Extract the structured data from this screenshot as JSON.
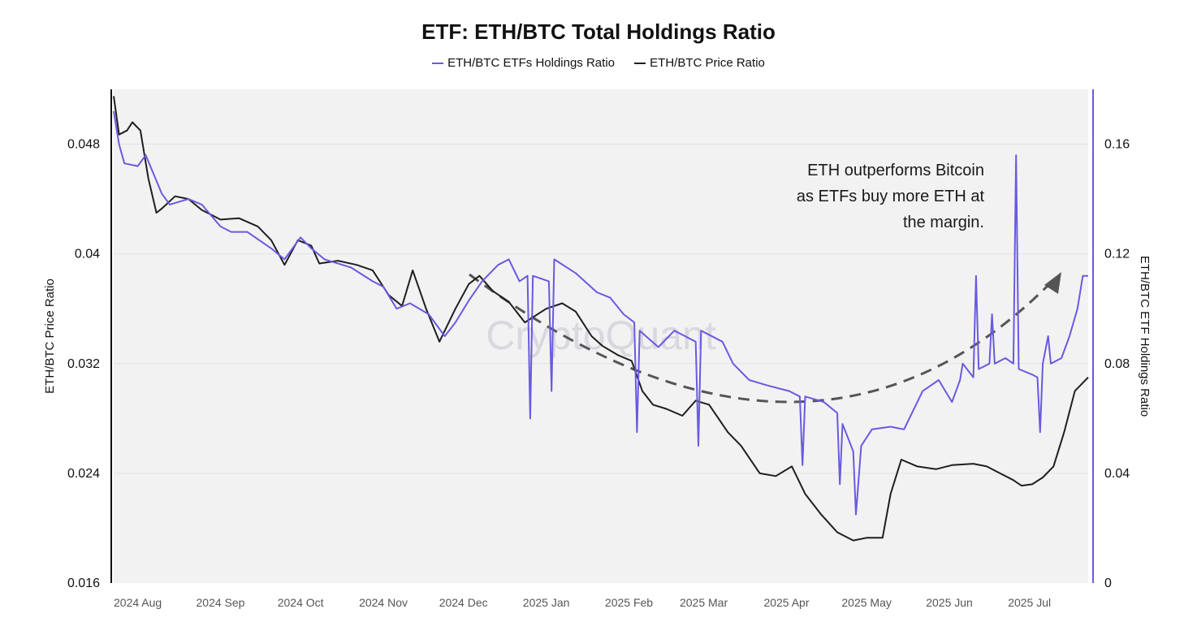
{
  "chart_data": {
    "type": "line",
    "title": "ETF: ETH/BTC Total Holdings Ratio",
    "watermark": "CryptoQuant",
    "annotation": [
      "ETH outperforms Bitcoin",
      "as ETFs buy more ETH at",
      "the margin."
    ],
    "x_tick_labels": [
      "2024 Aug",
      "2024 Sep",
      "2024 Oct",
      "2024 Nov",
      "2024 Dec",
      "2025 Jan",
      "2025 Feb",
      "2025 Mar",
      "2025 Apr",
      "2025 May",
      "2025 Jun",
      "2025 Jul"
    ],
    "x_range": [
      "2024-07-23",
      "2025-07-23"
    ],
    "left_axis": {
      "label": "ETH/BTC Price Ratio",
      "ticks": [
        "0.016",
        "0.024",
        "0.032",
        "0.04",
        "0.048"
      ],
      "range": [
        0.016,
        0.052
      ]
    },
    "right_axis": {
      "label": "ETH/BTC ETF Holdings Ratio",
      "ticks": [
        "0",
        "0.04",
        "0.08",
        "0.12",
        "0.16"
      ],
      "range": [
        0,
        0.18
      ]
    },
    "grid": "horizontal",
    "legend_position": "top-center",
    "series": [
      {
        "name": "ETH/BTC ETFs Holdings Ratio",
        "axis": "right",
        "color": "#6a5ae0",
        "points": [
          [
            "2024-07-23",
            0.172
          ],
          [
            "2024-07-25",
            0.16
          ],
          [
            "2024-07-27",
            0.153
          ],
          [
            "2024-08-01",
            0.152
          ],
          [
            "2024-08-04",
            0.156
          ],
          [
            "2024-08-10",
            0.142
          ],
          [
            "2024-08-13",
            0.138
          ],
          [
            "2024-08-20",
            0.14
          ],
          [
            "2024-08-25",
            0.138
          ],
          [
            "2024-09-01",
            0.13
          ],
          [
            "2024-09-05",
            0.128
          ],
          [
            "2024-09-11",
            0.128
          ],
          [
            "2024-09-20",
            0.122
          ],
          [
            "2024-09-25",
            0.118
          ],
          [
            "2024-10-01",
            0.126
          ],
          [
            "2024-10-05",
            0.122
          ],
          [
            "2024-10-10",
            0.118
          ],
          [
            "2024-10-20",
            0.115
          ],
          [
            "2024-10-28",
            0.11
          ],
          [
            "2024-11-01",
            0.108
          ],
          [
            "2024-11-06",
            0.1
          ],
          [
            "2024-11-11",
            0.102
          ],
          [
            "2024-11-18",
            0.098
          ],
          [
            "2024-11-24",
            0.09
          ],
          [
            "2024-11-28",
            0.095
          ],
          [
            "2024-12-03",
            0.103
          ],
          [
            "2024-12-08",
            0.11
          ],
          [
            "2024-12-14",
            0.116
          ],
          [
            "2024-12-18",
            0.118
          ],
          [
            "2024-12-22",
            0.11
          ],
          [
            "2024-12-25",
            0.112
          ],
          [
            "2024-12-26",
            0.06
          ],
          [
            "2024-12-27",
            0.112
          ],
          [
            "2025-01-02",
            0.11
          ],
          [
            "2025-01-03",
            0.07
          ],
          [
            "2025-01-04",
            0.118
          ],
          [
            "2025-01-12",
            0.113
          ],
          [
            "2025-01-20",
            0.106
          ],
          [
            "2025-01-25",
            0.104
          ],
          [
            "2025-01-30",
            0.098
          ],
          [
            "2025-02-03",
            0.095
          ],
          [
            "2025-02-04",
            0.055
          ],
          [
            "2025-02-05",
            0.092
          ],
          [
            "2025-02-12",
            0.086
          ],
          [
            "2025-02-18",
            0.092
          ],
          [
            "2025-02-22",
            0.09
          ],
          [
            "2025-02-26",
            0.088
          ],
          [
            "2025-02-27",
            0.05
          ],
          [
            "2025-02-28",
            0.092
          ],
          [
            "2025-03-08",
            0.088
          ],
          [
            "2025-03-12",
            0.08
          ],
          [
            "2025-03-18",
            0.074
          ],
          [
            "2025-03-25",
            0.072
          ],
          [
            "2025-04-02",
            0.07
          ],
          [
            "2025-04-06",
            0.068
          ],
          [
            "2025-04-07",
            0.043
          ],
          [
            "2025-04-08",
            0.068
          ],
          [
            "2025-04-15",
            0.066
          ],
          [
            "2025-04-20",
            0.062
          ],
          [
            "2025-04-21",
            0.036
          ],
          [
            "2025-04-22",
            0.058
          ],
          [
            "2025-04-26",
            0.048
          ],
          [
            "2025-04-27",
            0.025
          ],
          [
            "2025-04-29",
            0.05
          ],
          [
            "2025-05-03",
            0.056
          ],
          [
            "2025-05-10",
            0.057
          ],
          [
            "2025-05-15",
            0.056
          ],
          [
            "2025-05-22",
            0.07
          ],
          [
            "2025-05-28",
            0.074
          ],
          [
            "2025-06-02",
            0.066
          ],
          [
            "2025-06-05",
            0.074
          ],
          [
            "2025-06-06",
            0.08
          ],
          [
            "2025-06-10",
            0.075
          ],
          [
            "2025-06-11",
            0.112
          ],
          [
            "2025-06-12",
            0.078
          ],
          [
            "2025-06-16",
            0.08
          ],
          [
            "2025-06-17",
            0.098
          ],
          [
            "2025-06-18",
            0.08
          ],
          [
            "2025-06-22",
            0.082
          ],
          [
            "2025-06-25",
            0.08
          ],
          [
            "2025-06-26",
            0.156
          ],
          [
            "2025-06-27",
            0.078
          ],
          [
            "2025-07-02",
            0.076
          ],
          [
            "2025-07-04",
            0.075
          ],
          [
            "2025-07-05",
            0.055
          ],
          [
            "2025-07-06",
            0.08
          ],
          [
            "2025-07-08",
            0.09
          ],
          [
            "2025-07-09",
            0.08
          ],
          [
            "2025-07-13",
            0.082
          ],
          [
            "2025-07-16",
            0.09
          ],
          [
            "2025-07-19",
            0.1
          ],
          [
            "2025-07-21",
            0.112
          ],
          [
            "2025-07-23",
            0.112
          ]
        ]
      },
      {
        "name": "ETH/BTC Price Ratio",
        "axis": "left",
        "color": "#1f1f1f",
        "points": [
          [
            "2024-07-23",
            0.0515
          ],
          [
            "2024-07-25",
            0.0487
          ],
          [
            "2024-07-28",
            0.049
          ],
          [
            "2024-07-30",
            0.0496
          ],
          [
            "2024-08-02",
            0.049
          ],
          [
            "2024-08-05",
            0.0455
          ],
          [
            "2024-08-08",
            0.043
          ],
          [
            "2024-08-10",
            0.0433
          ],
          [
            "2024-08-15",
            0.0442
          ],
          [
            "2024-08-20",
            0.044
          ],
          [
            "2024-08-25",
            0.0432
          ],
          [
            "2024-09-01",
            0.0425
          ],
          [
            "2024-09-08",
            0.0426
          ],
          [
            "2024-09-15",
            0.042
          ],
          [
            "2024-09-20",
            0.041
          ],
          [
            "2024-09-25",
            0.0392
          ],
          [
            "2024-09-30",
            0.041
          ],
          [
            "2024-10-05",
            0.0406
          ],
          [
            "2024-10-08",
            0.0393
          ],
          [
            "2024-10-15",
            0.0395
          ],
          [
            "2024-10-22",
            0.0392
          ],
          [
            "2024-10-28",
            0.0388
          ],
          [
            "2024-11-03",
            0.037
          ],
          [
            "2024-11-08",
            0.0362
          ],
          [
            "2024-11-12",
            0.0388
          ],
          [
            "2024-11-17",
            0.036
          ],
          [
            "2024-11-22",
            0.0336
          ],
          [
            "2024-11-28",
            0.036
          ],
          [
            "2024-12-03",
            0.0378
          ],
          [
            "2024-12-07",
            0.0384
          ],
          [
            "2024-12-12",
            0.0373
          ],
          [
            "2024-12-18",
            0.0365
          ],
          [
            "2024-12-24",
            0.035
          ],
          [
            "2025-01-01",
            0.036
          ],
          [
            "2025-01-07",
            0.0364
          ],
          [
            "2025-01-12",
            0.0358
          ],
          [
            "2025-01-18",
            0.034
          ],
          [
            "2025-01-22",
            0.0333
          ],
          [
            "2025-01-28",
            0.0326
          ],
          [
            "2025-02-02",
            0.0322
          ],
          [
            "2025-02-06",
            0.03
          ],
          [
            "2025-02-10",
            0.029
          ],
          [
            "2025-02-15",
            0.0287
          ],
          [
            "2025-02-21",
            0.0282
          ],
          [
            "2025-02-26",
            0.0293
          ],
          [
            "2025-03-03",
            0.029
          ],
          [
            "2025-03-10",
            0.027
          ],
          [
            "2025-03-15",
            0.026
          ],
          [
            "2025-03-22",
            0.024
          ],
          [
            "2025-03-28",
            0.0238
          ],
          [
            "2025-04-03",
            0.0245
          ],
          [
            "2025-04-08",
            0.0225
          ],
          [
            "2025-04-14",
            0.021
          ],
          [
            "2025-04-20",
            0.0197
          ],
          [
            "2025-04-26",
            0.0191
          ],
          [
            "2025-05-01",
            0.0193
          ],
          [
            "2025-05-07",
            0.0193
          ],
          [
            "2025-05-10",
            0.0225
          ],
          [
            "2025-05-14",
            0.025
          ],
          [
            "2025-05-20",
            0.0245
          ],
          [
            "2025-05-27",
            0.0243
          ],
          [
            "2025-06-02",
            0.0246
          ],
          [
            "2025-06-10",
            0.0247
          ],
          [
            "2025-06-15",
            0.0245
          ],
          [
            "2025-06-20",
            0.024
          ],
          [
            "2025-06-25",
            0.0235
          ],
          [
            "2025-06-28",
            0.0231
          ],
          [
            "2025-07-02",
            0.0232
          ],
          [
            "2025-07-06",
            0.0237
          ],
          [
            "2025-07-10",
            0.0245
          ],
          [
            "2025-07-14",
            0.027
          ],
          [
            "2025-07-18",
            0.03
          ],
          [
            "2025-07-23",
            0.031
          ]
        ]
      }
    ]
  }
}
